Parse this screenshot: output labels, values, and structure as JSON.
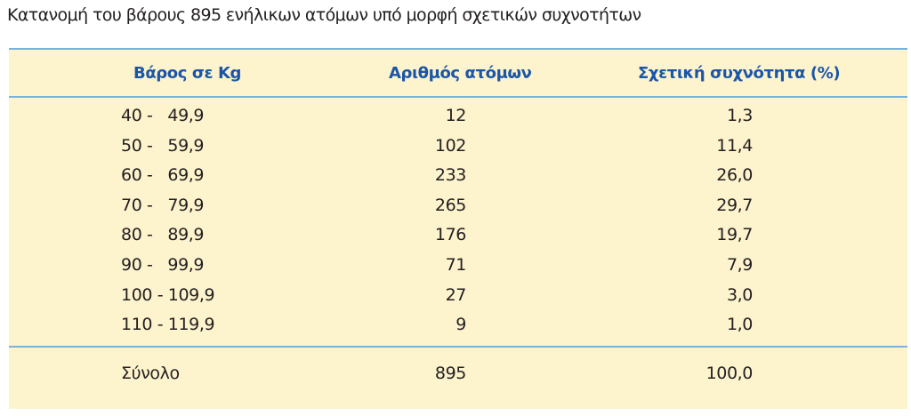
{
  "caption": "Κατανομή του βάρους 895 ενήλικων ατόμων υπό μορφή σχετικών συχνοτήτων",
  "table": {
    "headers": [
      "Βάρος σε Kg",
      "Αριθμός ατόμων",
      "Σχετική συχνότητα (%)"
    ],
    "rows": [
      {
        "range": "40 -   49,9",
        "count": "12",
        "freq": "1,3"
      },
      {
        "range": "50 -   59,9",
        "count": "102",
        "freq": "11,4"
      },
      {
        "range": "60 -   69,9",
        "count": "233",
        "freq": "26,0"
      },
      {
        "range": "70 -   79,9",
        "count": "265",
        "freq": "29,7"
      },
      {
        "range": "80 -   89,9",
        "count": "176",
        "freq": "19,7"
      },
      {
        "range": "90 -   99,9",
        "count": "71",
        "freq": "7,9"
      },
      {
        "range": "100 - 109,9",
        "count": "27",
        "freq": "3,0"
      },
      {
        "range": "110 - 119,9",
        "count": "9",
        "freq": "1,0"
      }
    ],
    "total": {
      "label": "Σύνολο",
      "count": "895",
      "freq": "100,0"
    }
  },
  "colors": {
    "panel_background": "#fdf3cd",
    "header_text": "#1a56a8",
    "rule_lines": "#79b3dc"
  }
}
